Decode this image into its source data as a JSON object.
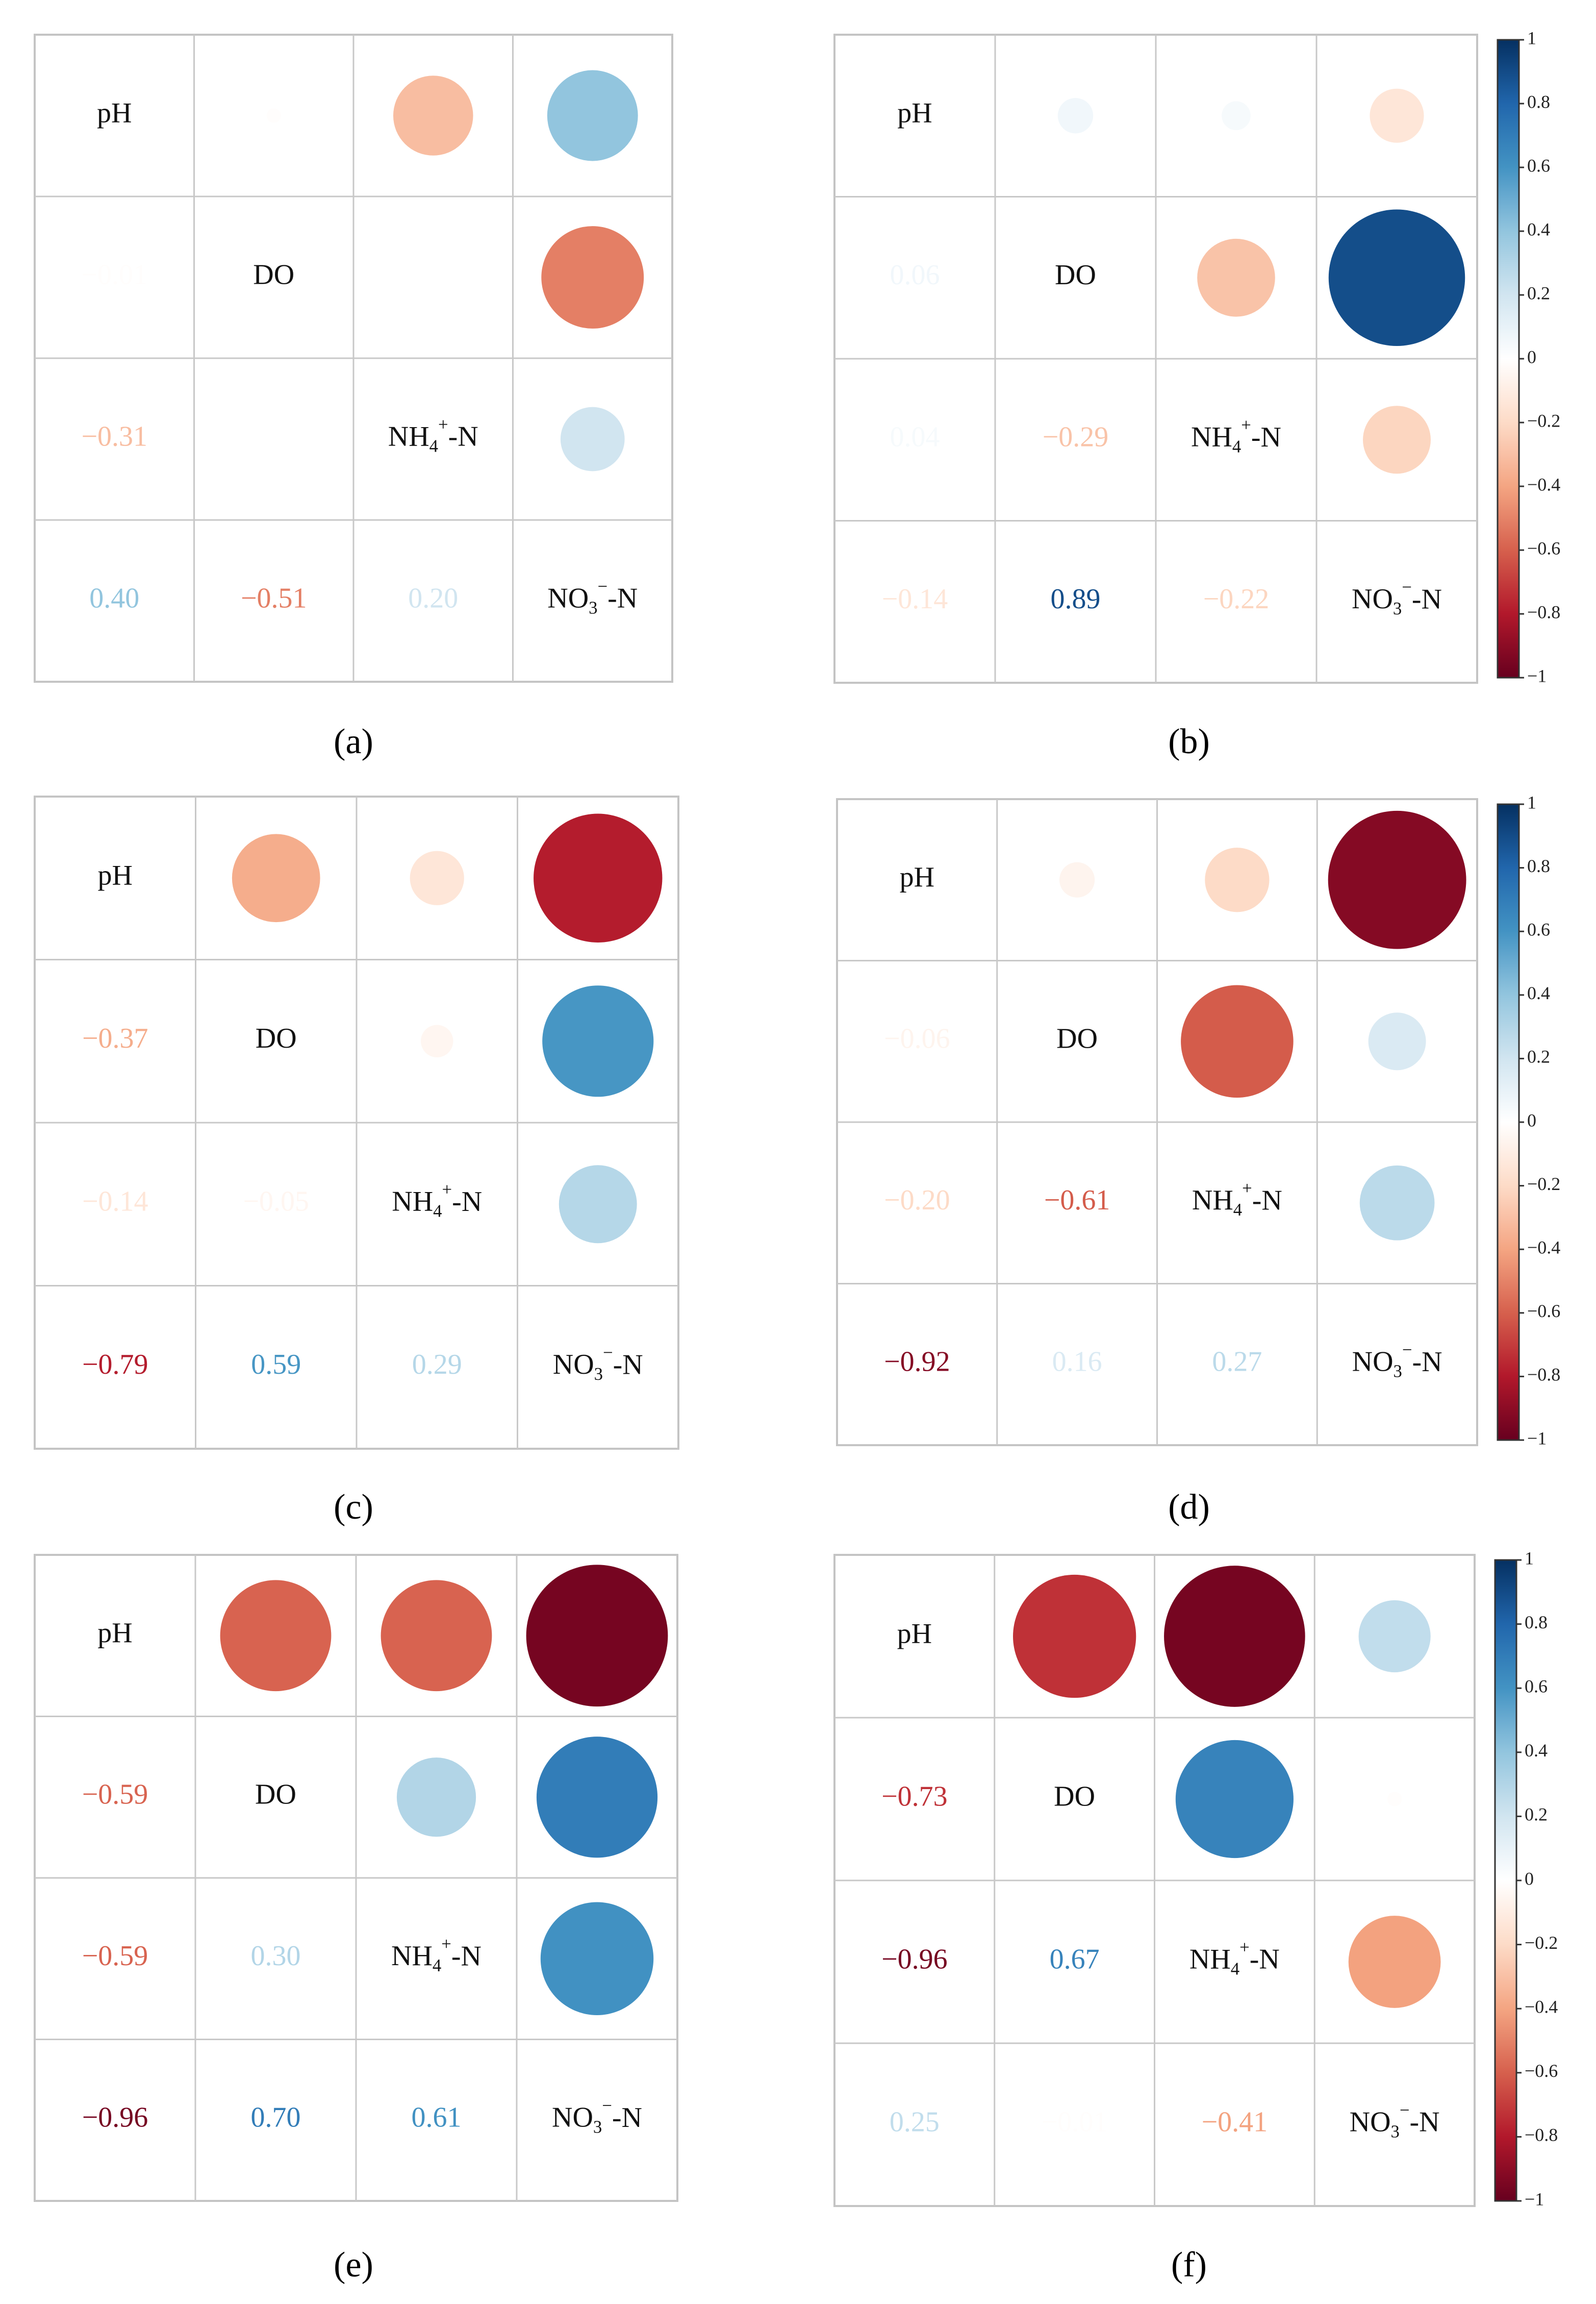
{
  "figure": {
    "panel_labels": [
      "(a)",
      "(b)",
      "(c)",
      "(d)",
      "(e)",
      "(f)"
    ]
  },
  "colorbar": {
    "ticks": [
      "1",
      "0.8",
      "0.6",
      "0.4",
      "0.2",
      "0",
      "−0.2",
      "−0.4",
      "−0.6",
      "−0.8",
      "−1"
    ],
    "tick_values": [
      1,
      0.8,
      0.6,
      0.4,
      0.2,
      0,
      -0.2,
      -0.4,
      -0.6,
      -0.8,
      -1
    ],
    "colors": {
      "strong_negative": "#67001f",
      "neg_08": "#b2182b",
      "neg_06": "#d6604d",
      "neg_04": "#f4a582",
      "neg_02": "#fddbc7",
      "zero": "#ffffff",
      "pos_02": "#d1e5f0",
      "pos_04": "#92c5de",
      "pos_06": "#4393c3",
      "pos_08": "#2166ac",
      "strong_positive": "#053061"
    }
  },
  "chart_data": [
    {
      "type": "heatmap",
      "panel": "(a)",
      "variables": [
        "pH",
        "DO",
        "NH<sub>4</sub><sup>+</sup>-N",
        "NO<sub>3</sub><sup>−</sup>-N"
      ],
      "variable_labels": [
        "pH",
        "DO",
        "NH4+-N",
        "NO3−-N"
      ],
      "matrix": [
        [
          1,
          -0.01,
          -0.31,
          0.4
        ],
        [
          -0.01,
          1,
          0.0,
          -0.51
        ],
        [
          -0.31,
          0.0,
          1,
          0.2
        ],
        [
          0.4,
          -0.51,
          0.2,
          1
        ]
      ],
      "lower_labels": [
        [
          "",
          "",
          "",
          ""
        ],
        [
          "−0.01",
          "",
          "",
          ""
        ],
        [
          "−0.31",
          "0.00",
          "",
          ""
        ],
        [
          "0.40",
          "−0.51",
          "0.20",
          ""
        ]
      ],
      "has_colorbar": false
    },
    {
      "type": "heatmap",
      "panel": "(b)",
      "variable_labels": [
        "pH",
        "DO",
        "NH4+-N",
        "NO3−-N"
      ],
      "matrix": [
        [
          1,
          0.06,
          0.04,
          -0.14
        ],
        [
          0.06,
          1,
          -0.29,
          0.89
        ],
        [
          0.04,
          -0.29,
          1,
          -0.22
        ],
        [
          -0.14,
          0.89,
          -0.22,
          1
        ]
      ],
      "lower_labels": [
        [
          "",
          "",
          "",
          ""
        ],
        [
          "0.06",
          "",
          "",
          ""
        ],
        [
          "0.04",
          "−0.29",
          "",
          ""
        ],
        [
          "−0.14",
          "0.89",
          "−0.22",
          ""
        ]
      ],
      "has_colorbar": true
    },
    {
      "type": "heatmap",
      "panel": "(c)",
      "variable_labels": [
        "pH",
        "DO",
        "NH4+-N",
        "NO3−-N"
      ],
      "matrix": [
        [
          1,
          -0.37,
          -0.14,
          -0.79
        ],
        [
          -0.37,
          1,
          -0.05,
          0.59
        ],
        [
          -0.14,
          -0.05,
          1,
          0.29
        ],
        [
          -0.79,
          0.59,
          0.29,
          1
        ]
      ],
      "lower_labels": [
        [
          "",
          "",
          "",
          ""
        ],
        [
          "−0.37",
          "",
          "",
          ""
        ],
        [
          "−0.14",
          "−0.05",
          "",
          ""
        ],
        [
          "−0.79",
          "0.59",
          "0.29",
          ""
        ]
      ],
      "has_colorbar": false
    },
    {
      "type": "heatmap",
      "panel": "(d)",
      "variable_labels": [
        "pH",
        "DO",
        "NH4+-N",
        "NO3−-N"
      ],
      "matrix": [
        [
          1,
          -0.06,
          -0.2,
          -0.92
        ],
        [
          -0.06,
          1,
          -0.61,
          0.16
        ],
        [
          -0.2,
          -0.61,
          1,
          0.27
        ],
        [
          -0.92,
          0.16,
          0.27,
          1
        ]
      ],
      "lower_labels": [
        [
          "",
          "",
          "",
          ""
        ],
        [
          "−0.06",
          "",
          "",
          ""
        ],
        [
          "−0.20",
          "−0.61",
          "",
          ""
        ],
        [
          "−0.92",
          "0.16",
          "0.27",
          ""
        ]
      ],
      "has_colorbar": true
    },
    {
      "type": "heatmap",
      "panel": "(e)",
      "variable_labels": [
        "pH",
        "DO",
        "NH4+-N",
        "NO3−-N"
      ],
      "matrix": [
        [
          1,
          -0.59,
          -0.59,
          -0.96
        ],
        [
          -0.59,
          1,
          0.3,
          0.7
        ],
        [
          -0.59,
          0.3,
          1,
          0.61
        ],
        [
          -0.96,
          0.7,
          0.61,
          1
        ]
      ],
      "lower_labels": [
        [
          "",
          "",
          "",
          ""
        ],
        [
          "−0.59",
          "",
          "",
          ""
        ],
        [
          "−0.59",
          "0.30",
          "",
          ""
        ],
        [
          "−0.96",
          "0.70",
          "0.61",
          ""
        ]
      ],
      "has_colorbar": false
    },
    {
      "type": "heatmap",
      "panel": "(f)",
      "variable_labels": [
        "pH",
        "DO",
        "NH4+-N",
        "NO3−-N"
      ],
      "matrix": [
        [
          1,
          -0.73,
          -0.96,
          0.25
        ],
        [
          -0.73,
          1,
          0.67,
          -0.01
        ],
        [
          -0.96,
          0.67,
          1,
          -0.41
        ],
        [
          0.25,
          -0.01,
          -0.41,
          1
        ]
      ],
      "lower_labels": [
        [
          "",
          "",
          "",
          ""
        ],
        [
          "−0.73",
          "",
          "",
          ""
        ],
        [
          "−0.96",
          "0.67",
          "",
          ""
        ],
        [
          "0.25",
          "−0.01",
          "−0.41",
          ""
        ]
      ],
      "has_colorbar": true
    }
  ]
}
